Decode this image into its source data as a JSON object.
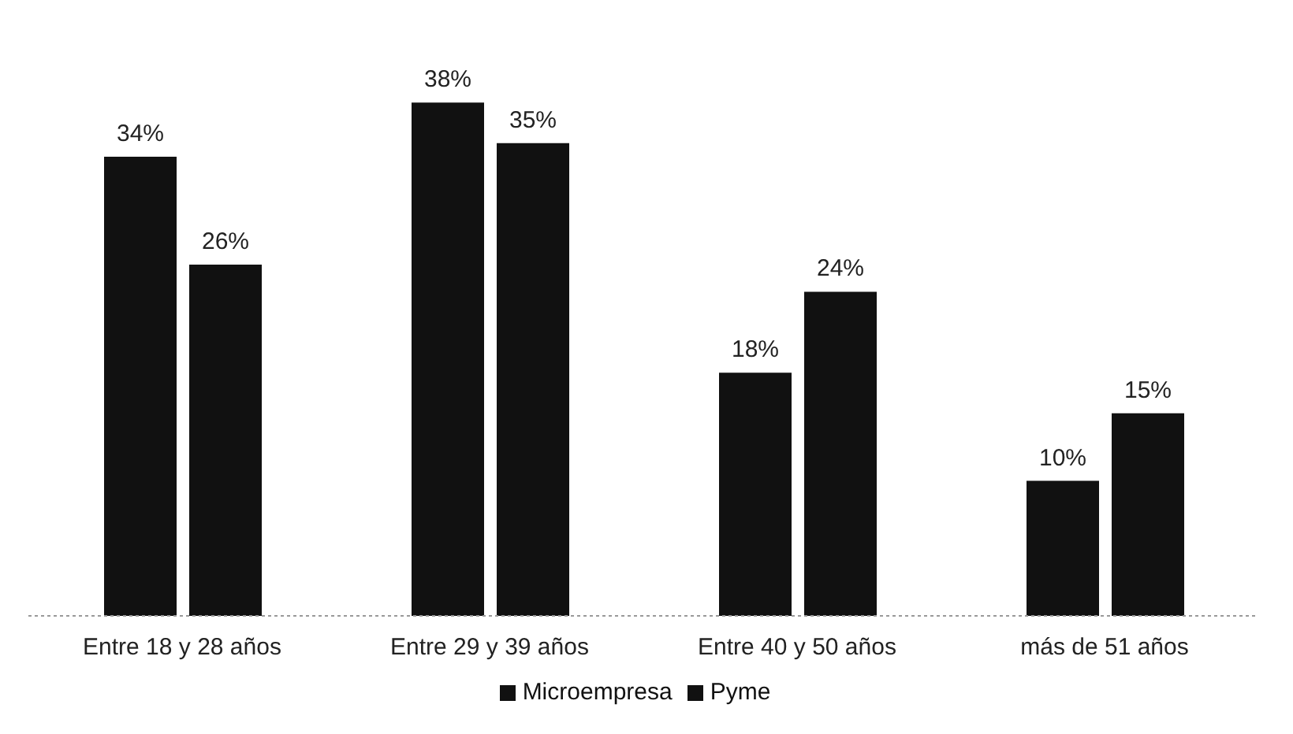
{
  "chart_data": {
    "type": "bar",
    "categories": [
      "Entre 18 y 28 años",
      "Entre 29 y 39 años",
      "Entre 40 y 50 años",
      "más de 51 años"
    ],
    "series": [
      {
        "name": "Microempresa",
        "color": "#111111",
        "values": [
          34,
          38,
          18,
          10
        ],
        "value_labels": [
          "34%",
          "38%",
          "18%",
          "10%"
        ]
      },
      {
        "name": "Pyme",
        "color": "#111111",
        "values": [
          26,
          35,
          24,
          15
        ],
        "value_labels": [
          "26%",
          "35%",
          "24%",
          "15%"
        ]
      }
    ],
    "legend": "bottom",
    "grid": false
  }
}
